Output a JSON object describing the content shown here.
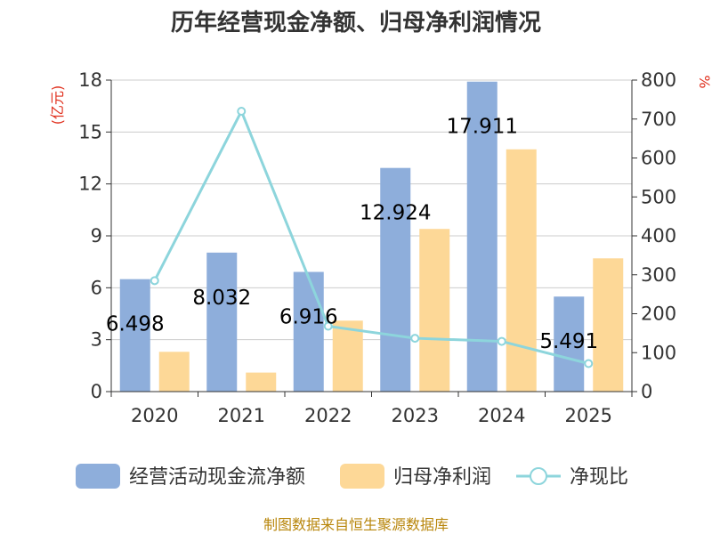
{
  "chart_data": {
    "type": "bar",
    "title": "历年经营现金净额、归母净利润情况",
    "categories": [
      "2020",
      "2021",
      "2022",
      "2023",
      "2024",
      "2025"
    ],
    "series": [
      {
        "name": "经营活动现金流净额",
        "type": "bar",
        "axis": "left",
        "color": "#8eaedb",
        "values": [
          6.498,
          8.032,
          6.916,
          12.924,
          17.911,
          5.491
        ]
      },
      {
        "name": "归母净利润",
        "type": "bar",
        "axis": "left",
        "color": "#fdd897",
        "values": [
          2.3,
          1.1,
          4.1,
          9.4,
          14.0,
          7.7
        ]
      },
      {
        "name": "净现比",
        "type": "line",
        "axis": "right",
        "color": "#8dd5dc",
        "values": [
          285,
          720,
          168,
          137,
          129,
          72
        ]
      }
    ],
    "data_labels": [
      "6.498",
      "8.032",
      "6.916",
      "12.924",
      "17.911",
      "5.491"
    ],
    "y_left": {
      "unit": "(亿元)",
      "ticks": [
        "0",
        "3",
        "6",
        "9",
        "12",
        "15",
        "18"
      ],
      "lim": [
        0,
        18
      ]
    },
    "y_right": {
      "unit": "%",
      "ticks": [
        "0",
        "100",
        "200",
        "300",
        "400",
        "500",
        "600",
        "700",
        "800"
      ],
      "lim": [
        0,
        800
      ]
    },
    "grid": true,
    "legend_position": "bottom",
    "source": "制图数据来自恒生聚源数据库"
  }
}
